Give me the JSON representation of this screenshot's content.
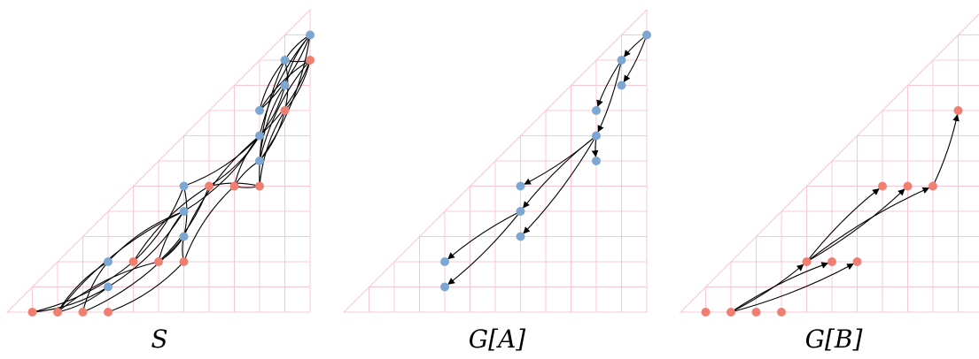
{
  "colors": {
    "blue": "#7ba7d2",
    "red": "#f07f72",
    "grid": "#f7c8d4",
    "edge": "#000000"
  },
  "panels": [
    {
      "caption": "S",
      "blue_nodes": [
        [
          12,
          11
        ],
        [
          11,
          10
        ],
        [
          11,
          9
        ],
        [
          10,
          8
        ],
        [
          10,
          7
        ],
        [
          10,
          6
        ],
        [
          7,
          5
        ],
        [
          7,
          4
        ],
        [
          7,
          3
        ],
        [
          4,
          2
        ],
        [
          4,
          1
        ]
      ],
      "red_nodes": [
        [
          12,
          10
        ],
        [
          11,
          8
        ],
        [
          10,
          5
        ],
        [
          9,
          5
        ],
        [
          8,
          5
        ],
        [
          7,
          2
        ],
        [
          6,
          2
        ],
        [
          5,
          2
        ],
        [
          4,
          0
        ],
        [
          3,
          0
        ],
        [
          2,
          0
        ],
        [
          1,
          0
        ]
      ],
      "edges": [
        [
          [
            12,
            11
          ],
          [
            11,
            10
          ]
        ],
        [
          [
            12,
            11
          ],
          [
            10,
            8
          ]
        ],
        [
          [
            12,
            11
          ],
          [
            10,
            7
          ]
        ],
        [
          [
            12,
            11
          ],
          [
            10,
            6
          ]
        ],
        [
          [
            12,
            11
          ],
          [
            11,
            9
          ]
        ],
        [
          [
            12,
            10
          ],
          [
            11,
            10
          ]
        ],
        [
          [
            12,
            10
          ],
          [
            10,
            8
          ]
        ],
        [
          [
            12,
            10
          ],
          [
            10,
            7
          ]
        ],
        [
          [
            12,
            10
          ],
          [
            10,
            6
          ]
        ],
        [
          [
            12,
            10
          ],
          [
            11,
            8
          ]
        ],
        [
          [
            11,
            10
          ],
          [
            10,
            8
          ]
        ],
        [
          [
            11,
            10
          ],
          [
            11,
            8
          ]
        ],
        [
          [
            11,
            10
          ],
          [
            10,
            5
          ]
        ],
        [
          [
            11,
            9
          ],
          [
            10,
            7
          ]
        ],
        [
          [
            11,
            9
          ],
          [
            10,
            6
          ]
        ],
        [
          [
            11,
            8
          ],
          [
            10,
            6
          ]
        ],
        [
          [
            11,
            8
          ],
          [
            10,
            5
          ]
        ],
        [
          [
            10,
            7
          ],
          [
            7,
            5
          ]
        ],
        [
          [
            10,
            7
          ],
          [
            7,
            3
          ]
        ],
        [
          [
            10,
            7
          ],
          [
            7,
            4
          ]
        ],
        [
          [
            10,
            7
          ],
          [
            9,
            5
          ]
        ],
        [
          [
            10,
            7
          ],
          [
            8,
            5
          ]
        ],
        [
          [
            10,
            6
          ],
          [
            9,
            5
          ]
        ],
        [
          [
            10,
            5
          ],
          [
            9,
            5
          ]
        ],
        [
          [
            10,
            5
          ],
          [
            8,
            5
          ]
        ],
        [
          [
            7,
            5
          ],
          [
            7,
            3
          ]
        ],
        [
          [
            7,
            4
          ],
          [
            4,
            2
          ]
        ],
        [
          [
            7,
            4
          ],
          [
            4,
            1
          ]
        ],
        [
          [
            7,
            4
          ],
          [
            6,
            2
          ]
        ],
        [
          [
            7,
            5
          ],
          [
            5,
            2
          ]
        ],
        [
          [
            7,
            3
          ],
          [
            7,
            2
          ]
        ],
        [
          [
            7,
            3
          ],
          [
            6,
            2
          ]
        ],
        [
          [
            9,
            5
          ],
          [
            7,
            2
          ]
        ],
        [
          [
            8,
            5
          ],
          [
            6,
            2
          ]
        ],
        [
          [
            8,
            5
          ],
          [
            5,
            2
          ]
        ],
        [
          [
            7,
            2
          ],
          [
            4,
            0
          ]
        ],
        [
          [
            6,
            2
          ],
          [
            2,
            0
          ]
        ],
        [
          [
            5,
            2
          ],
          [
            1,
            0
          ]
        ],
        [
          [
            4,
            2
          ],
          [
            2,
            0
          ]
        ],
        [
          [
            4,
            1
          ],
          [
            2,
            0
          ]
        ],
        [
          [
            4,
            2
          ],
          [
            3,
            0
          ]
        ],
        [
          [
            4,
            1
          ],
          [
            1,
            0
          ]
        ],
        [
          [
            7,
            4
          ],
          [
            2,
            0
          ]
        ],
        [
          [
            7,
            3
          ],
          [
            3,
            0
          ]
        ]
      ],
      "arrows": false
    },
    {
      "caption": "G[A]",
      "blue_nodes": [
        [
          12,
          11
        ],
        [
          11,
          10
        ],
        [
          11,
          9
        ],
        [
          10,
          8
        ],
        [
          10,
          7
        ],
        [
          10,
          6
        ],
        [
          7,
          5
        ],
        [
          7,
          4
        ],
        [
          7,
          3
        ],
        [
          4,
          2
        ],
        [
          4,
          1
        ]
      ],
      "red_nodes": [],
      "edges": [
        [
          [
            12,
            11
          ],
          [
            11,
            10
          ]
        ],
        [
          [
            12,
            11
          ],
          [
            11,
            9
          ]
        ],
        [
          [
            11,
            10
          ],
          [
            10,
            8
          ]
        ],
        [
          [
            11,
            10
          ],
          [
            10,
            7
          ]
        ],
        [
          [
            10,
            7
          ],
          [
            10,
            6
          ]
        ],
        [
          [
            10,
            7
          ],
          [
            7,
            5
          ]
        ],
        [
          [
            10,
            7
          ],
          [
            7,
            4
          ]
        ],
        [
          [
            10,
            7
          ],
          [
            7,
            3
          ]
        ],
        [
          [
            7,
            4
          ],
          [
            4,
            2
          ]
        ],
        [
          [
            7,
            4
          ],
          [
            4,
            1
          ]
        ]
      ],
      "arrows": true
    },
    {
      "caption": "G[B]",
      "blue_nodes": [],
      "red_nodes": [
        [
          11,
          8
        ],
        [
          8,
          5
        ],
        [
          9,
          5
        ],
        [
          10,
          5
        ],
        [
          5,
          2
        ],
        [
          6,
          2
        ],
        [
          7,
          2
        ],
        [
          1,
          0
        ],
        [
          2,
          0
        ],
        [
          3,
          0
        ],
        [
          4,
          0
        ]
      ],
      "edges": [
        [
          [
            2,
            0
          ],
          [
            5,
            2
          ]
        ],
        [
          [
            2,
            0
          ],
          [
            6,
            2
          ]
        ],
        [
          [
            2,
            0
          ],
          [
            7,
            2
          ]
        ],
        [
          [
            5,
            2
          ],
          [
            8,
            5
          ]
        ],
        [
          [
            5,
            2
          ],
          [
            9,
            5
          ]
        ],
        [
          [
            5,
            2
          ],
          [
            10,
            5
          ]
        ],
        [
          [
            10,
            5
          ],
          [
            11,
            8
          ]
        ]
      ],
      "arrows": true
    }
  ]
}
